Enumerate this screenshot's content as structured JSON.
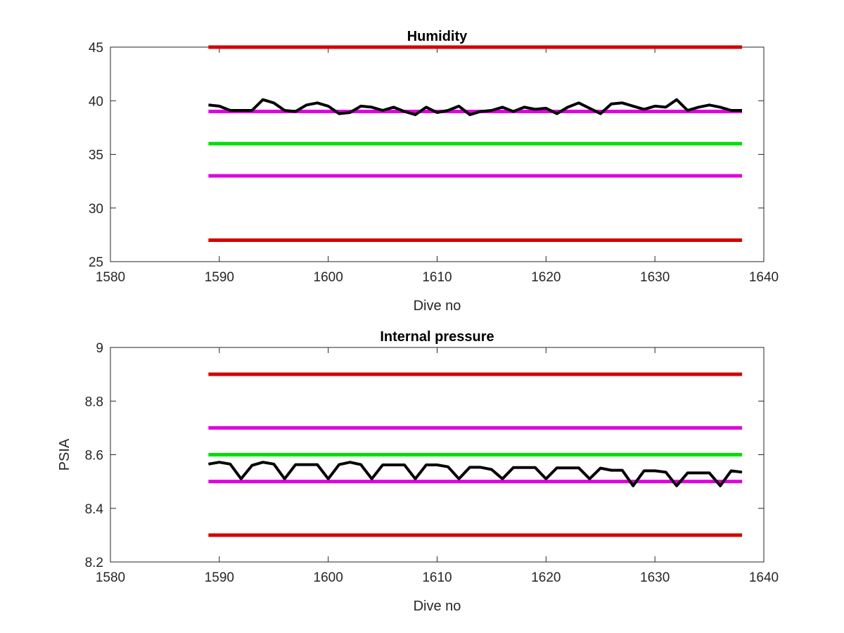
{
  "chart_data": [
    {
      "type": "line",
      "title": "Humidity",
      "xlabel": "Dive no",
      "ylabel": "",
      "xlim": [
        1580,
        1640
      ],
      "ylim": [
        25,
        45
      ],
      "xticks": [
        1580,
        1590,
        1600,
        1610,
        1620,
        1630,
        1640
      ],
      "yticks": [
        25,
        30,
        35,
        40,
        45
      ],
      "xtick_labels": [
        "1580",
        "1590",
        "1600",
        "1610",
        "1620",
        "1630",
        "1640"
      ],
      "ytick_labels": [
        "25",
        "30",
        "35",
        "40",
        "45"
      ],
      "grid": false,
      "series": [
        {
          "kind": "hline",
          "color": "#d40000",
          "x": [
            1589,
            1638
          ],
          "y": 45
        },
        {
          "kind": "hline",
          "color": "#d40000",
          "x": [
            1589,
            1638
          ],
          "y": 27
        },
        {
          "kind": "hline",
          "color": "#e000e0",
          "x": [
            1589,
            1638
          ],
          "y": 39
        },
        {
          "kind": "hline",
          "color": "#e000e0",
          "x": [
            1589,
            1638
          ],
          "y": 33
        },
        {
          "kind": "hline",
          "color": "#00e000",
          "x": [
            1589,
            1638
          ],
          "y": 36
        },
        {
          "kind": "data",
          "color": "#000000",
          "x": [
            1589,
            1590,
            1591,
            1592,
            1593,
            1594,
            1595,
            1596,
            1597,
            1598,
            1599,
            1600,
            1601,
            1602,
            1603,
            1604,
            1605,
            1606,
            1607,
            1608,
            1609,
            1610,
            1611,
            1612,
            1613,
            1614,
            1615,
            1616,
            1617,
            1618,
            1619,
            1620,
            1621,
            1622,
            1623,
            1624,
            1625,
            1626,
            1627,
            1628,
            1629,
            1630,
            1631,
            1632,
            1633,
            1634,
            1635,
            1636,
            1637,
            1638
          ],
          "y": [
            39.6,
            39.5,
            39.1,
            39.1,
            39.1,
            40.1,
            39.8,
            39.1,
            39.0,
            39.6,
            39.8,
            39.5,
            38.8,
            38.9,
            39.5,
            39.4,
            39.1,
            39.4,
            39.0,
            38.7,
            39.4,
            38.9,
            39.1,
            39.5,
            38.7,
            39.0,
            39.1,
            39.4,
            39.0,
            39.4,
            39.2,
            39.3,
            38.8,
            39.4,
            39.8,
            39.3,
            38.8,
            39.7,
            39.8,
            39.5,
            39.2,
            39.5,
            39.4,
            40.1,
            39.1,
            39.4,
            39.6,
            39.4,
            39.1,
            39.1
          ]
        }
      ]
    },
    {
      "type": "line",
      "title": "Internal pressure",
      "xlabel": "Dive no",
      "ylabel": "PSIA",
      "xlim": [
        1580,
        1640
      ],
      "ylim": [
        8.2,
        9
      ],
      "xticks": [
        1580,
        1590,
        1600,
        1610,
        1620,
        1630,
        1640
      ],
      "yticks": [
        8.2,
        8.4,
        8.6,
        8.8,
        9
      ],
      "xtick_labels": [
        "1580",
        "1590",
        "1600",
        "1610",
        "1620",
        "1630",
        "1640"
      ],
      "ytick_labels": [
        "8.2",
        "8.4",
        "8.6",
        "8.8",
        "9"
      ],
      "grid": false,
      "series": [
        {
          "kind": "hline",
          "color": "#d40000",
          "x": [
            1589,
            1638
          ],
          "y": 8.9
        },
        {
          "kind": "hline",
          "color": "#d40000",
          "x": [
            1589,
            1638
          ],
          "y": 8.3
        },
        {
          "kind": "hline",
          "color": "#e000e0",
          "x": [
            1589,
            1638
          ],
          "y": 8.7
        },
        {
          "kind": "hline",
          "color": "#e000e0",
          "x": [
            1589,
            1638
          ],
          "y": 8.5
        },
        {
          "kind": "hline",
          "color": "#00e000",
          "x": [
            1589,
            1638
          ],
          "y": 8.6
        },
        {
          "kind": "data",
          "color": "#000000",
          "x": [
            1589,
            1590,
            1591,
            1592,
            1593,
            1594,
            1595,
            1596,
            1597,
            1598,
            1599,
            1600,
            1601,
            1602,
            1603,
            1604,
            1605,
            1606,
            1607,
            1608,
            1609,
            1610,
            1611,
            1612,
            1613,
            1614,
            1615,
            1616,
            1617,
            1618,
            1619,
            1620,
            1621,
            1622,
            1623,
            1624,
            1625,
            1626,
            1627,
            1628,
            1629,
            1630,
            1631,
            1632,
            1633,
            1634,
            1635,
            1636,
            1637,
            1638
          ],
          "y": [
            8.565,
            8.572,
            8.565,
            8.51,
            8.56,
            8.572,
            8.565,
            8.51,
            8.563,
            8.563,
            8.563,
            8.51,
            8.563,
            8.572,
            8.563,
            8.51,
            8.562,
            8.562,
            8.562,
            8.51,
            8.562,
            8.562,
            8.555,
            8.51,
            8.553,
            8.553,
            8.545,
            8.51,
            8.552,
            8.552,
            8.552,
            8.51,
            8.551,
            8.551,
            8.551,
            8.51,
            8.55,
            8.542,
            8.542,
            8.484,
            8.54,
            8.54,
            8.535,
            8.484,
            8.532,
            8.532,
            8.532,
            8.484,
            8.54,
            8.535
          ]
        }
      ]
    }
  ]
}
